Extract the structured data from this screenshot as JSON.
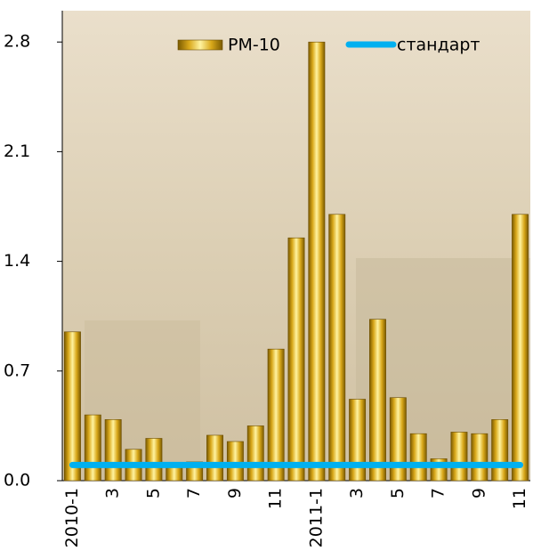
{
  "chart_data": {
    "type": "bar",
    "categories": [
      "2010-1",
      null,
      "3",
      null,
      "5",
      null,
      "7",
      null,
      "9",
      null,
      "11",
      null,
      "2011-1",
      null,
      "3",
      null,
      "5",
      null,
      "7",
      null,
      "9",
      null,
      "11"
    ],
    "series": [
      {
        "name": "PM-10",
        "type": "bar",
        "color": "#d9a81a",
        "values": [
          0.95,
          0.42,
          0.39,
          0.2,
          0.27,
          0.1,
          0.12,
          0.29,
          0.25,
          0.35,
          0.84,
          1.55,
          2.8,
          1.7,
          0.52,
          1.03,
          0.53,
          0.3,
          0.14,
          0.31,
          0.3,
          0.39,
          1.7
        ]
      },
      {
        "name": "стандарт",
        "type": "line",
        "color": "#00b0f0",
        "values": [
          0.1,
          0.1,
          0.1,
          0.1,
          0.1,
          0.1,
          0.1,
          0.1,
          0.1,
          0.1,
          0.1,
          0.1,
          0.1,
          0.1,
          0.1,
          0.1,
          0.1,
          0.1,
          0.1,
          0.1,
          0.1,
          0.1,
          0.1
        ]
      }
    ],
    "ylim": [
      0,
      3
    ],
    "yticks": [
      {
        "value": 0,
        "label": "0.0"
      },
      0.7,
      1.4,
      2.1,
      2.8
    ],
    "legend": "top"
  }
}
